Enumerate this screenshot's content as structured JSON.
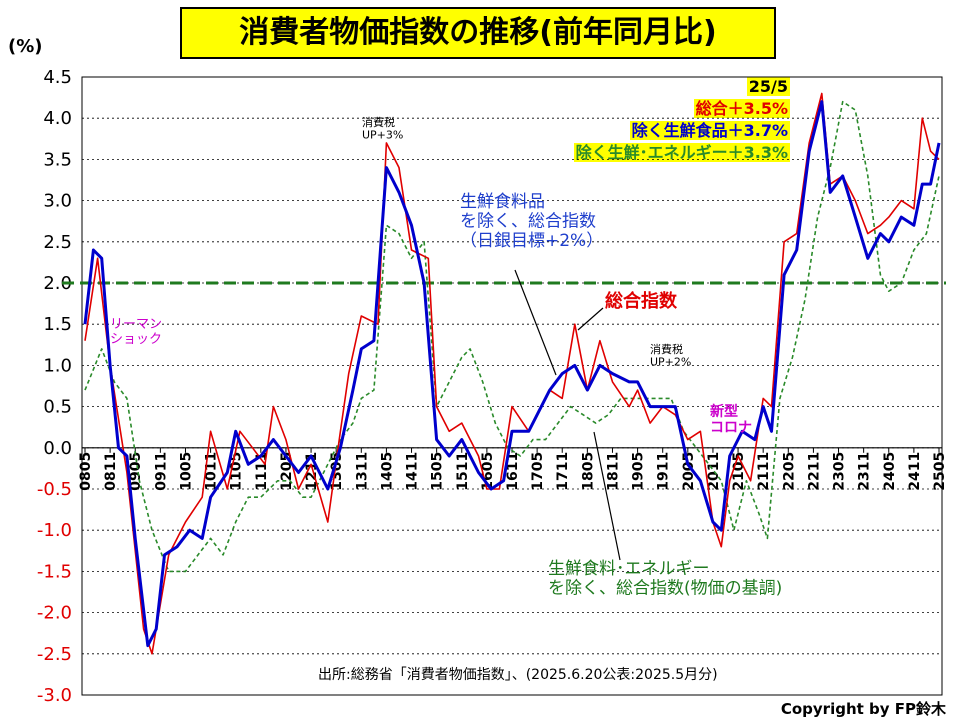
{
  "title": "消費者物価指数の推移(前年同月比)",
  "ylabel": "(%)",
  "source": "出所:総務省「消費者物価指数」、(2025.6.20公表:2025.5月分)",
  "copyright": "Copyright by FP鈴木",
  "latest": {
    "date": "25/5",
    "total": "総合＋3.5%",
    "core": "除く生鮮食品＋3.7%",
    "corecore": "除く生鮮･エネルギー＋3.3%"
  },
  "annotations": {
    "lehman": "リーマン\nショック",
    "tax1": "消費税\nUP+3%",
    "tax2": "消費税\nUP+2%",
    "corona": "新型\nコロナ",
    "core_label": "生鮮食料品\nを除く、総合指数\n（日銀目標+2%）",
    "total_label": "総合指数",
    "corecore_label": "生鮮食料･エネルギー\nを除く、総合指数(物価の基調)"
  },
  "colors": {
    "total": "#e00000",
    "core": "#0000cc",
    "corecore": "#2a8a2a",
    "target": "#1f7a1f"
  },
  "chart_data": {
    "type": "line",
    "ylim": [
      -3.0,
      4.5
    ],
    "yticks": [
      "4.5",
      "4.0",
      "3.5",
      "3.0",
      "2.5",
      "2.0",
      "1.5",
      "1.0",
      "0.5",
      "0.0",
      "-0.5",
      "-1.0",
      "-1.5",
      "-2.0",
      "-2.5",
      "-3.0"
    ],
    "x_start": "2008-05",
    "x_end": "2025-05",
    "xticks": [
      "0805",
      "0811",
      "0905",
      "0911",
      "1005",
      "1011",
      "1105",
      "1111",
      "1205",
      "1211",
      "1305",
      "1311",
      "1405",
      "1411",
      "1505",
      "1511",
      "1605",
      "1611",
      "1705",
      "1711",
      "1805",
      "1811",
      "1905",
      "1911",
      "2005",
      "2011",
      "2105",
      "2111",
      "2205",
      "2211",
      "2305",
      "2311",
      "2405",
      "2411",
      "2505"
    ],
    "target_line": 2.0,
    "grid": "y",
    "series": [
      {
        "name": "総合指数",
        "color": "#e00000",
        "points": [
          [
            "0805",
            1.3
          ],
          [
            "0808",
            2.3
          ],
          [
            "0811",
            1.0
          ],
          [
            "0903",
            -0.3
          ],
          [
            "0907",
            -2.2
          ],
          [
            "0909",
            -2.5
          ],
          [
            "1001",
            -1.3
          ],
          [
            "1005",
            -0.9
          ],
          [
            "1009",
            -0.6
          ],
          [
            "1011",
            0.2
          ],
          [
            "1103",
            -0.5
          ],
          [
            "1106",
            0.2
          ],
          [
            "1109",
            0.0
          ],
          [
            "1112",
            -0.2
          ],
          [
            "1202",
            0.5
          ],
          [
            "1205",
            0.1
          ],
          [
            "1208",
            -0.5
          ],
          [
            "1211",
            -0.2
          ],
          [
            "1303",
            -0.9
          ],
          [
            "1306",
            0.2
          ],
          [
            "1308",
            0.9
          ],
          [
            "1311",
            1.6
          ],
          [
            "1403",
            1.5
          ],
          [
            "1405",
            3.7
          ],
          [
            "1408",
            3.4
          ],
          [
            "1411",
            2.4
          ],
          [
            "1503",
            2.3
          ],
          [
            "1505",
            0.5
          ],
          [
            "1508",
            0.2
          ],
          [
            "1511",
            0.3
          ],
          [
            "1603",
            -0.1
          ],
          [
            "1605",
            -0.5
          ],
          [
            "1608",
            -0.5
          ],
          [
            "1611",
            0.5
          ],
          [
            "1703",
            0.2
          ],
          [
            "1705",
            0.4
          ],
          [
            "1708",
            0.7
          ],
          [
            "1711",
            0.6
          ],
          [
            "1802",
            1.5
          ],
          [
            "1805",
            0.7
          ],
          [
            "1808",
            1.3
          ],
          [
            "1811",
            0.8
          ],
          [
            "1903",
            0.5
          ],
          [
            "1905",
            0.7
          ],
          [
            "1908",
            0.3
          ],
          [
            "1911",
            0.5
          ],
          [
            "2002",
            0.4
          ],
          [
            "2005",
            0.1
          ],
          [
            "2008",
            0.2
          ],
          [
            "2011",
            -0.9
          ],
          [
            "2101",
            -1.2
          ],
          [
            "2103",
            -0.4
          ],
          [
            "2105",
            -0.1
          ],
          [
            "2108",
            -0.4
          ],
          [
            "2111",
            0.6
          ],
          [
            "2201",
            0.5
          ],
          [
            "2204",
            2.5
          ],
          [
            "2207",
            2.6
          ],
          [
            "2210",
            3.7
          ],
          [
            "2301",
            4.3
          ],
          [
            "2303",
            3.2
          ],
          [
            "2306",
            3.3
          ],
          [
            "2309",
            3.0
          ],
          [
            "2312",
            2.6
          ],
          [
            "2403",
            2.7
          ],
          [
            "2405",
            2.8
          ],
          [
            "2408",
            3.0
          ],
          [
            "2411",
            2.9
          ],
          [
            "2501",
            4.0
          ],
          [
            "2503",
            3.6
          ],
          [
            "2505",
            3.5
          ]
        ]
      },
      {
        "name": "生鮮食料品を除く、総合指数",
        "color": "#0000cc",
        "points": [
          [
            "0805",
            1.5
          ],
          [
            "0807",
            2.4
          ],
          [
            "0809",
            2.3
          ],
          [
            "0811",
            1.0
          ],
          [
            "0901",
            0.0
          ],
          [
            "0903",
            -0.1
          ],
          [
            "0905",
            -1.1
          ],
          [
            "0908",
            -2.4
          ],
          [
            "0910",
            -2.2
          ],
          [
            "0912",
            -1.3
          ],
          [
            "1003",
            -1.2
          ],
          [
            "1006",
            -1.0
          ],
          [
            "1009",
            -1.1
          ],
          [
            "1011",
            -0.6
          ],
          [
            "1103",
            -0.3
          ],
          [
            "1105",
            0.2
          ],
          [
            "1108",
            -0.2
          ],
          [
            "1111",
            -0.1
          ],
          [
            "1202",
            0.1
          ],
          [
            "1205",
            -0.1
          ],
          [
            "1208",
            -0.3
          ],
          [
            "1211",
            -0.1
          ],
          [
            "1303",
            -0.5
          ],
          [
            "1306",
            0.0
          ],
          [
            "1309",
            0.7
          ],
          [
            "1311",
            1.2
          ],
          [
            "1402",
            1.3
          ],
          [
            "1405",
            3.4
          ],
          [
            "1408",
            3.1
          ],
          [
            "1411",
            2.7
          ],
          [
            "1502",
            2.0
          ],
          [
            "1505",
            0.1
          ],
          [
            "1508",
            -0.1
          ],
          [
            "1511",
            0.1
          ],
          [
            "1603",
            -0.3
          ],
          [
            "1606",
            -0.5
          ],
          [
            "1609",
            -0.4
          ],
          [
            "1611",
            0.2
          ],
          [
            "1703",
            0.2
          ],
          [
            "1705",
            0.4
          ],
          [
            "1708",
            0.7
          ],
          [
            "1711",
            0.9
          ],
          [
            "1802",
            1.0
          ],
          [
            "1805",
            0.7
          ],
          [
            "1808",
            1.0
          ],
          [
            "1811",
            0.9
          ],
          [
            "1903",
            0.8
          ],
          [
            "1905",
            0.8
          ],
          [
            "1908",
            0.5
          ],
          [
            "1911",
            0.5
          ],
          [
            "2002",
            0.5
          ],
          [
            "2005",
            -0.2
          ],
          [
            "2008",
            -0.4
          ],
          [
            "2011",
            -0.9
          ],
          [
            "2101",
            -1.0
          ],
          [
            "2103",
            -0.1
          ],
          [
            "2106",
            0.2
          ],
          [
            "2109",
            0.1
          ],
          [
            "2111",
            0.5
          ],
          [
            "2201",
            0.2
          ],
          [
            "2204",
            2.1
          ],
          [
            "2207",
            2.4
          ],
          [
            "2210",
            3.6
          ],
          [
            "2301",
            4.2
          ],
          [
            "2303",
            3.1
          ],
          [
            "2306",
            3.3
          ],
          [
            "2309",
            2.8
          ],
          [
            "2312",
            2.3
          ],
          [
            "2403",
            2.6
          ],
          [
            "2405",
            2.5
          ],
          [
            "2408",
            2.8
          ],
          [
            "2411",
            2.7
          ],
          [
            "2501",
            3.2
          ],
          [
            "2503",
            3.2
          ],
          [
            "2505",
            3.7
          ]
        ]
      },
      {
        "name": "生鮮食料･エネルギーを除く、総合指数",
        "color": "#2a8a2a",
        "points": [
          [
            "0805",
            0.7
          ],
          [
            "0809",
            1.2
          ],
          [
            "0812",
            0.8
          ],
          [
            "0903",
            0.6
          ],
          [
            "0906",
            -0.4
          ],
          [
            "0909",
            -1.0
          ],
          [
            "1001",
            -1.5
          ],
          [
            "1005",
            -1.5
          ],
          [
            "1008",
            -1.3
          ],
          [
            "1011",
            -1.1
          ],
          [
            "1102",
            -1.3
          ],
          [
            "1105",
            -0.9
          ],
          [
            "1108",
            -0.6
          ],
          [
            "1111",
            -0.6
          ],
          [
            "1203",
            -0.4
          ],
          [
            "1206",
            -0.4
          ],
          [
            "1209",
            -0.6
          ],
          [
            "1211",
            -0.6
          ],
          [
            "1303",
            -0.2
          ],
          [
            "1306",
            0.1
          ],
          [
            "1309",
            0.3
          ],
          [
            "1311",
            0.6
          ],
          [
            "1402",
            0.7
          ],
          [
            "1405",
            2.7
          ],
          [
            "1408",
            2.6
          ],
          [
            "1411",
            2.3
          ],
          [
            "1502",
            2.5
          ],
          [
            "1505",
            0.5
          ],
          [
            "1508",
            0.8
          ],
          [
            "1511",
            1.1
          ],
          [
            "1601",
            1.2
          ],
          [
            "1604",
            0.8
          ],
          [
            "1607",
            0.3
          ],
          [
            "1610",
            0.0
          ],
          [
            "1701",
            -0.1
          ],
          [
            "1704",
            0.1
          ],
          [
            "1707",
            0.1
          ],
          [
            "1710",
            0.3
          ],
          [
            "1801",
            0.5
          ],
          [
            "1804",
            0.4
          ],
          [
            "1807",
            0.3
          ],
          [
            "1810",
            0.4
          ],
          [
            "1901",
            0.6
          ],
          [
            "1904",
            0.6
          ],
          [
            "1907",
            0.6
          ],
          [
            "1910",
            0.6
          ],
          [
            "2001",
            0.6
          ],
          [
            "2004",
            0.2
          ],
          [
            "2007",
            0.0
          ],
          [
            "2010",
            -0.2
          ],
          [
            "2101",
            -0.4
          ],
          [
            "2104",
            -1.0
          ],
          [
            "2107",
            -0.4
          ],
          [
            "2110",
            -0.8
          ],
          [
            "2112",
            -1.1
          ],
          [
            "2203",
            0.6
          ],
          [
            "2206",
            1.1
          ],
          [
            "2209",
            1.8
          ],
          [
            "2212",
            2.8
          ],
          [
            "2303",
            3.4
          ],
          [
            "2306",
            4.2
          ],
          [
            "2309",
            4.1
          ],
          [
            "2312",
            3.3
          ],
          [
            "2403",
            2.1
          ],
          [
            "2405",
            1.9
          ],
          [
            "2408",
            2.0
          ],
          [
            "2411",
            2.4
          ],
          [
            "2502",
            2.6
          ],
          [
            "2505",
            3.3
          ]
        ]
      }
    ]
  }
}
